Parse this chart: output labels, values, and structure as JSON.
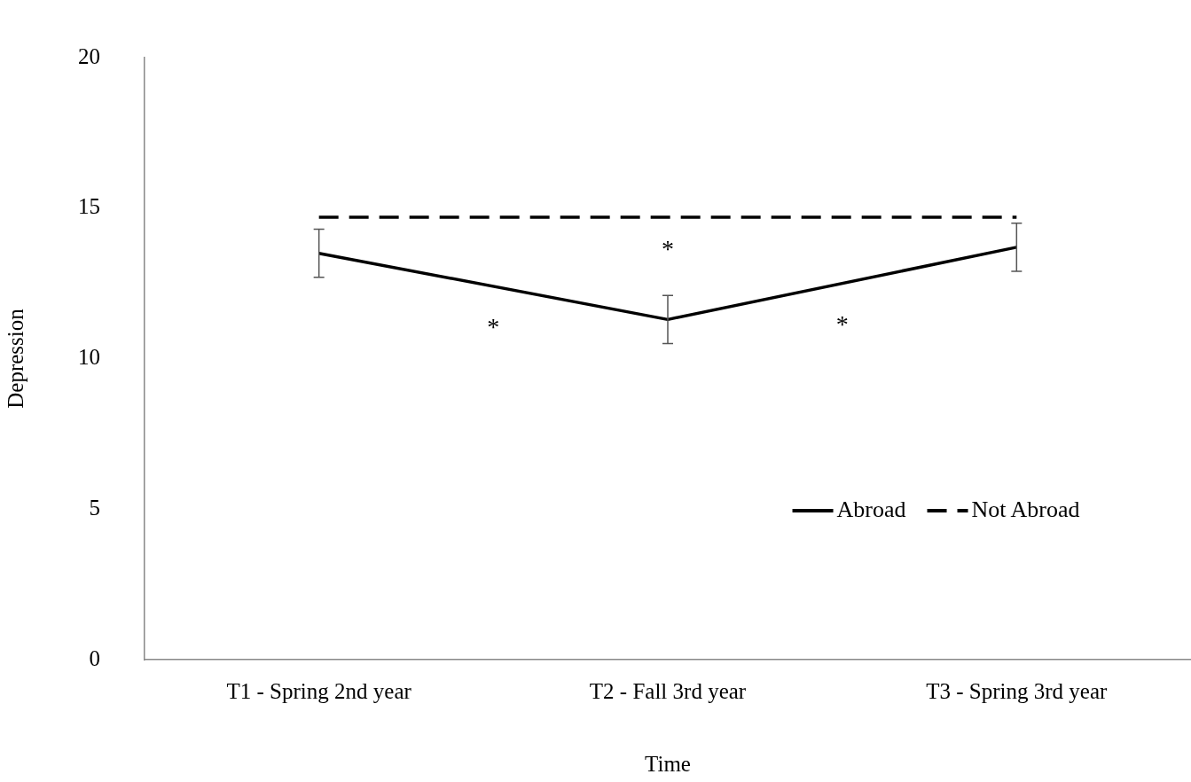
{
  "chart_data": {
    "type": "line",
    "xlabel": "Time",
    "ylabel": "Depression",
    "categories": [
      "T1 - Spring 2nd year",
      "T2 - Fall 3rd year",
      "T3 - Spring 3rd year"
    ],
    "series": [
      {
        "name": "Abroad",
        "color": "#000000",
        "values": [
          13.5,
          11.3,
          13.7
        ],
        "errors": [
          0.8,
          0.8,
          0.8
        ],
        "line_style": "solid"
      },
      {
        "name": "Not Abroad",
        "color": "#000000",
        "values": [
          14.7,
          14.7,
          14.7
        ],
        "line_style": "dashed"
      }
    ],
    "ylim": [
      0,
      20
    ],
    "yticks": [
      0,
      5,
      10,
      15,
      20
    ],
    "grid": false,
    "legend": "bottom right",
    "marker": "none",
    "annotations": [
      "*",
      "*",
      "*"
    ]
  }
}
